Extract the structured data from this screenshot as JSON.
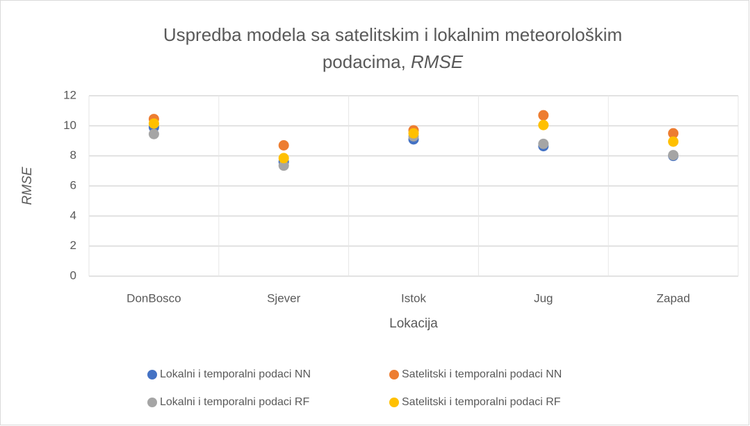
{
  "chart_data": {
    "type": "scatter",
    "title": [
      "Uspredba modela sa satelitskim i lokalnim meteorološkim",
      "podacima,",
      "RMSE"
    ],
    "x_label": "Lokacija",
    "y_label": "RMSE",
    "categories": [
      "DonBosco",
      "Sjever",
      "Istok",
      "Jug",
      "Zapad"
    ],
    "series": [
      {
        "name": "Lokalni i temporalni podaci NN",
        "color": "#4472c4",
        "values": [
          9.9,
          7.6,
          9.1,
          8.65,
          8.0
        ]
      },
      {
        "name": "Satelitski i temporalni podaci NN",
        "color": "#ed7d31",
        "values": [
          10.45,
          8.7,
          9.7,
          10.7,
          9.5
        ]
      },
      {
        "name": "Lokalni i temporalni podaci RF",
        "color": "#a5a5a5",
        "values": [
          9.45,
          7.35,
          9.3,
          8.8,
          8.05
        ]
      },
      {
        "name": "Satelitski i temporalni podaci RF",
        "color": "#ffc000",
        "values": [
          10.15,
          7.85,
          9.5,
          10.05,
          8.95
        ]
      }
    ],
    "ylim": [
      0,
      12
    ],
    "yticks": [
      0,
      2,
      4,
      6,
      8,
      10,
      12
    ],
    "grid": true,
    "legend": "bottom"
  }
}
